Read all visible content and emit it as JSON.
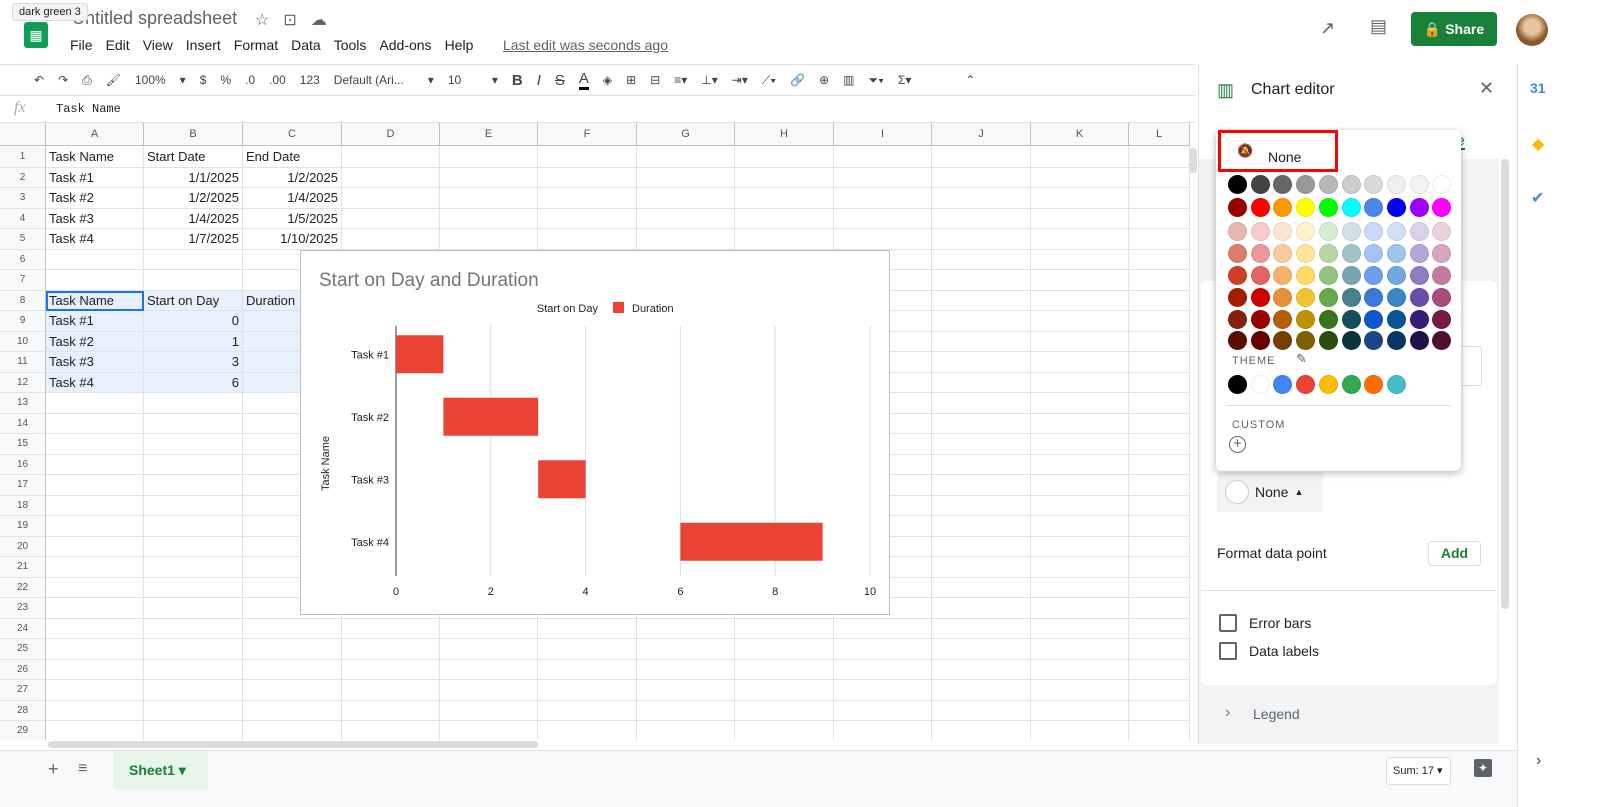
{
  "tooltip": "dark green 3",
  "app": {
    "title": "Untitled spreadsheet",
    "menu": [
      "File",
      "Edit",
      "View",
      "Insert",
      "Format",
      "Data",
      "Tools",
      "Add-ons",
      "Help"
    ],
    "last_edit": "Last edit was seconds ago",
    "share": "Share"
  },
  "toolbar": {
    "zoom": "100%",
    "currency": "$",
    "percent": "%",
    "dec_less": ".0",
    "dec_more": ".00",
    "format": "123",
    "font": "Default (Ari...",
    "size": "10",
    "bold": "B",
    "italic": "I",
    "strike": "S",
    "textcolor": "A"
  },
  "formula": {
    "fx": "fx",
    "value": "Task Name"
  },
  "columns": [
    "A",
    "B",
    "C",
    "D",
    "E",
    "F",
    "G",
    "H",
    "I",
    "J",
    "K",
    "L"
  ],
  "rows": [
    [
      "Task Name",
      "Start Date",
      "End Date"
    ],
    [
      "Task #1",
      "1/1/2025",
      "1/2/2025"
    ],
    [
      "Task #2",
      "1/2/2025",
      "1/4/2025"
    ],
    [
      "Task #3",
      "1/4/2025",
      "1/5/2025"
    ],
    [
      "Task #4",
      "1/7/2025",
      "1/10/2025"
    ],
    [],
    [],
    [
      "Task Name",
      "Start on Day",
      "Duration"
    ],
    [
      "Task #1",
      "0",
      ""
    ],
    [
      "Task #2",
      "1",
      ""
    ],
    [
      "Task #3",
      "3",
      ""
    ],
    [
      "Task #4",
      "6",
      ""
    ]
  ],
  "row_count": 29,
  "chart_data": {
    "type": "bar",
    "orientation": "horizontal",
    "stacked": true,
    "title": "Start on Day and Duration",
    "ylabel": "Task Name",
    "xlabel": "",
    "categories": [
      "Task #1",
      "Task #2",
      "Task #3",
      "Task #4"
    ],
    "series": [
      {
        "name": "Start on Day",
        "values": [
          0,
          1,
          3,
          6
        ],
        "color": "none"
      },
      {
        "name": "Duration",
        "values": [
          1,
          2,
          1,
          3
        ],
        "color": "#ea4335"
      }
    ],
    "xlim": [
      0,
      10
    ],
    "xticks": [
      "0",
      "2",
      "4",
      "6",
      "8",
      "10"
    ],
    "grid": true,
    "legend": "top"
  },
  "editor": {
    "title": "Chart editor",
    "tab_partial": "e",
    "none_label": "None",
    "fill_none": "None",
    "format_data_point": "Format data point",
    "add": "Add",
    "error_bars": "Error bars",
    "data_labels": "Data labels",
    "legend": "Legend"
  },
  "palette": {
    "none": "None",
    "theme_label": "THEME",
    "custom_label": "CUSTOM",
    "rows": [
      [
        "#000000",
        "#434343",
        "#666666",
        "#999999",
        "#b7b7b7",
        "#cccccc",
        "#d9d9d9",
        "#efefef",
        "#f3f3f3",
        "#ffffff"
      ],
      [
        "#980000",
        "#ff0000",
        "#ff9900",
        "#ffff00",
        "#00ff00",
        "#00ffff",
        "#4a86e8",
        "#0000ff",
        "#9900ff",
        "#ff00ff"
      ],
      [
        "#e6b8af",
        "#f4cccc",
        "#fce5cd",
        "#fff2cc",
        "#d9ead3",
        "#d0e0e3",
        "#c9daf8",
        "#cfe2f3",
        "#d9d2e9",
        "#ead1dc"
      ],
      [
        "#dd7e6b",
        "#ea9999",
        "#f9cb9c",
        "#ffe599",
        "#b6d7a8",
        "#a2c4c9",
        "#a4c2f4",
        "#9fc5e8",
        "#b4a7d6",
        "#d5a6bd"
      ],
      [
        "#cc4125",
        "#e06666",
        "#f6b26b",
        "#ffd966",
        "#93c47d",
        "#76a5af",
        "#6d9eeb",
        "#6fa8dc",
        "#8e7cc3",
        "#c27ba0"
      ],
      [
        "#a61c00",
        "#cc0000",
        "#e69138",
        "#f1c232",
        "#6aa84f",
        "#45818e",
        "#3c78d8",
        "#3d85c6",
        "#674ea7",
        "#a64d79"
      ],
      [
        "#85200c",
        "#990000",
        "#b45f06",
        "#bf9000",
        "#38761d",
        "#134f5c",
        "#1155cc",
        "#0b5394",
        "#351c75",
        "#741b47"
      ],
      [
        "#5b0f00",
        "#660000",
        "#783f04",
        "#7f6000",
        "#274e13",
        "#0c343d",
        "#1c4587",
        "#073763",
        "#20124d",
        "#4c1130"
      ]
    ],
    "theme": [
      "#000000",
      "#ffffff",
      "#4285f4",
      "#ea4335",
      "#fbbc04",
      "#34a853",
      "#ff6d01",
      "#46bdc6"
    ]
  },
  "bottom": {
    "sheet": "Sheet1",
    "sum": "Sum: 17"
  },
  "colors": {
    "brand": "#188038",
    "highlight": "#ff0000",
    "selection": "#e8f0fe"
  }
}
